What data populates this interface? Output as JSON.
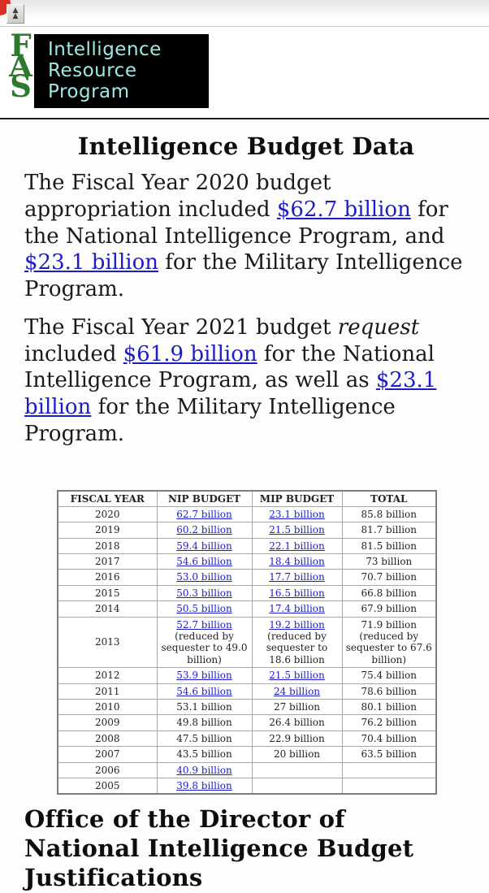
{
  "header": {
    "scroll_top_button": {
      "icon": "double-chevron-up",
      "glyph": "▲"
    },
    "corner_badge": {
      "icon": "red-corner-badge"
    }
  },
  "logo": {
    "letters": [
      "F",
      "A",
      "S"
    ],
    "program_lines": [
      "Intelligence",
      "Resource",
      "Program"
    ]
  },
  "main": {
    "title": "Intelligence Budget Data",
    "paragraphs": [
      {
        "parts": [
          {
            "t": "text",
            "v": "The Fiscal Year 2020 budget appropriation included "
          },
          {
            "t": "link",
            "v": "$62.7 billion"
          },
          {
            "t": "text",
            "v": " for the National Intelligence Program, and "
          },
          {
            "t": "link",
            "v": "$23.1 billion"
          },
          {
            "t": "text",
            "v": " for the Military Intelligence Program."
          }
        ]
      },
      {
        "parts": [
          {
            "t": "text",
            "v": "The Fiscal Year 2021 budget "
          },
          {
            "t": "em",
            "v": "request"
          },
          {
            "t": "text",
            "v": " included "
          },
          {
            "t": "link",
            "v": "$61.9 billion"
          },
          {
            "t": "text",
            "v": " for the National Intelligence Program, as well as "
          },
          {
            "t": "link",
            "v": "$23.1 billion"
          },
          {
            "t": "text",
            "v": " for the Military Intelligence Program."
          }
        ]
      }
    ]
  },
  "table": {
    "headers": [
      "FISCAL YEAR",
      "NIP BUDGET",
      "MIP BUDGET",
      "TOTAL"
    ],
    "rows": [
      {
        "year": "2020",
        "nip": [
          {
            "t": "link",
            "v": "62.7 billion"
          }
        ],
        "mip": [
          {
            "t": "link",
            "v": "23.1 billion"
          }
        ],
        "total": [
          {
            "t": "text",
            "v": "85.8 billion"
          }
        ]
      },
      {
        "year": "2019",
        "nip": [
          {
            "t": "link",
            "v": "60.2 billion"
          }
        ],
        "mip": [
          {
            "t": "link",
            "v": "21.5 billion"
          }
        ],
        "total": [
          {
            "t": "text",
            "v": "81.7 billion"
          }
        ]
      },
      {
        "year": "2018",
        "nip": [
          {
            "t": "link",
            "v": "59.4 billion"
          }
        ],
        "mip": [
          {
            "t": "link",
            "v": "22.1 billion"
          }
        ],
        "total": [
          {
            "t": "text",
            "v": "81.5 billion"
          }
        ]
      },
      {
        "year": "2017",
        "nip": [
          {
            "t": "link",
            "v": "54.6 billion"
          }
        ],
        "mip": [
          {
            "t": "link",
            "v": "18.4 billion"
          }
        ],
        "total": [
          {
            "t": "text",
            "v": "73 billion"
          }
        ]
      },
      {
        "year": "2016",
        "nip": [
          {
            "t": "link",
            "v": "53.0 billion"
          }
        ],
        "mip": [
          {
            "t": "link",
            "v": "17.7 billion"
          }
        ],
        "total": [
          {
            "t": "text",
            "v": "70.7 billion"
          }
        ]
      },
      {
        "year": "2015",
        "nip": [
          {
            "t": "link",
            "v": "50.3 billion"
          }
        ],
        "mip": [
          {
            "t": "link",
            "v": "16.5 billion"
          }
        ],
        "total": [
          {
            "t": "text",
            "v": "66.8 billion"
          }
        ]
      },
      {
        "year": "2014",
        "nip": [
          {
            "t": "link",
            "v": "50.5 billion"
          }
        ],
        "mip": [
          {
            "t": "link",
            "v": "17.4 billion"
          }
        ],
        "total": [
          {
            "t": "text",
            "v": "67.9 billion"
          }
        ]
      },
      {
        "year": "2013",
        "nip": [
          {
            "t": "link",
            "v": "52.7 billion"
          },
          {
            "t": "text",
            "v": " (reduced by sequester to 49.0 billion)"
          }
        ],
        "mip": [
          {
            "t": "link",
            "v": "19.2 billion"
          },
          {
            "t": "text",
            "v": " (reduced by sequester to 18.6 billion"
          }
        ],
        "total": [
          {
            "t": "text",
            "v": "71.9 billion (reduced by sequester to 67.6 billion)"
          }
        ]
      },
      {
        "year": "2012",
        "nip": [
          {
            "t": "link",
            "v": "53.9 billion"
          }
        ],
        "mip": [
          {
            "t": "link",
            "v": "21.5 billion"
          }
        ],
        "total": [
          {
            "t": "text",
            "v": "75.4 billion"
          }
        ]
      },
      {
        "year": "2011",
        "nip": [
          {
            "t": "link",
            "v": "54.6 billion"
          }
        ],
        "mip": [
          {
            "t": "link",
            "v": "24 billion"
          }
        ],
        "total": [
          {
            "t": "text",
            "v": "78.6 billion"
          }
        ]
      },
      {
        "year": "2010",
        "nip": [
          {
            "t": "text",
            "v": "53.1 billion"
          }
        ],
        "mip": [
          {
            "t": "text",
            "v": "27 billion"
          }
        ],
        "total": [
          {
            "t": "text",
            "v": "80.1 billion"
          }
        ]
      },
      {
        "year": "2009",
        "nip": [
          {
            "t": "text",
            "v": "49.8 billion"
          }
        ],
        "mip": [
          {
            "t": "text",
            "v": "26.4 billion"
          }
        ],
        "total": [
          {
            "t": "text",
            "v": "76.2 billion"
          }
        ]
      },
      {
        "year": "2008",
        "nip": [
          {
            "t": "text",
            "v": "47.5 billion"
          }
        ],
        "mip": [
          {
            "t": "text",
            "v": "22.9 billion"
          }
        ],
        "total": [
          {
            "t": "text",
            "v": "70.4 billion"
          }
        ]
      },
      {
        "year": "2007",
        "nip": [
          {
            "t": "text",
            "v": "43.5 billion"
          }
        ],
        "mip": [
          {
            "t": "text",
            "v": "20 billion"
          }
        ],
        "total": [
          {
            "t": "text",
            "v": "63.5 billion"
          }
        ]
      },
      {
        "year": "2006",
        "nip": [
          {
            "t": "link",
            "v": "40.9 billion"
          }
        ],
        "mip": [],
        "total": []
      },
      {
        "year": "2005",
        "nip": [
          {
            "t": "link",
            "v": "39.8 billion"
          }
        ],
        "mip": [],
        "total": []
      }
    ]
  },
  "footer": {
    "heading": "Office of the Director of National Intelligence Budget Justifications"
  },
  "colors": {
    "link": "#1d1dc8",
    "logo_green": "#2c7a2c",
    "logo_text": "#9fe9e4",
    "logo_bg": "#000000",
    "corner_red": "#d93025"
  }
}
